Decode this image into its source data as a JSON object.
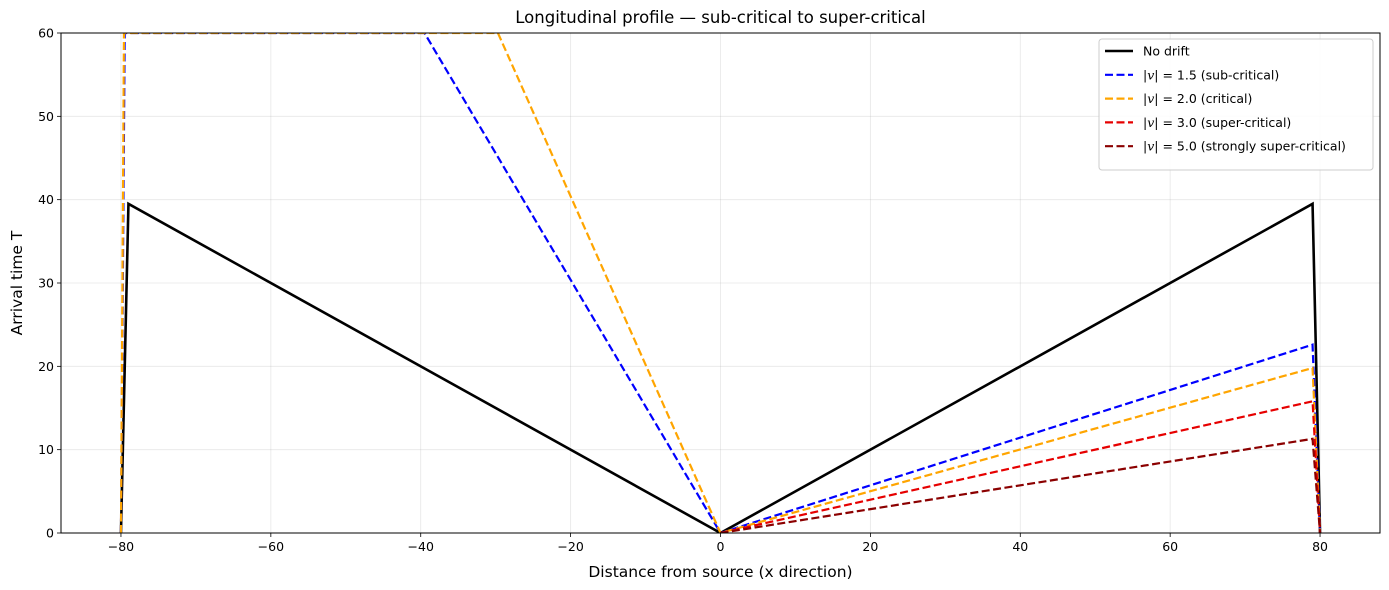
{
  "chart_data": {
    "type": "line",
    "title": "Longitudinal profile — sub-critical to super-critical",
    "xlabel": "Distance from source (x direction)",
    "ylabel": "Arrival time T",
    "xlim": [
      -88,
      88
    ],
    "ylim": [
      0,
      60
    ],
    "xticks": [
      -80,
      -60,
      -40,
      -20,
      0,
      20,
      40,
      60,
      80
    ],
    "xtick_labels": [
      "−80",
      "−60",
      "−40",
      "−20",
      "0",
      "20",
      "40",
      "60",
      "80"
    ],
    "yticks": [
      0,
      10,
      20,
      30,
      40,
      50,
      60
    ],
    "ytick_labels": [
      "0",
      "10",
      "20",
      "30",
      "40",
      "50",
      "60"
    ],
    "grid": true,
    "legend_position": "top-right",
    "series": [
      {
        "name": "No drift",
        "color": "#000000",
        "style": "solid",
        "x": [
          -80,
          -79,
          0,
          79,
          80
        ],
        "y": [
          0,
          39.5,
          0,
          39.5,
          0
        ]
      },
      {
        "name": "|v| = 1.5 (sub-critical)",
        "legend_var": "v",
        "legend_value": "= 1.5",
        "legend_desc": "(sub-critical)",
        "color": "#0000ff",
        "style": "dashed",
        "x": [
          -80,
          -79.5,
          -39.5,
          0,
          79,
          80
        ],
        "y": [
          0,
          60,
          60,
          0,
          22.6,
          0
        ]
      },
      {
        "name": "|v| = 2.0 (critical)",
        "legend_var": "v",
        "legend_value": "= 2.0",
        "legend_desc": "(critical)",
        "color": "#ffa500",
        "style": "dashed",
        "x": [
          -80,
          -79.6,
          -29.7,
          0,
          79,
          80
        ],
        "y": [
          0,
          60,
          60,
          0,
          19.8,
          0
        ]
      },
      {
        "name": "|v| = 3.0 (super-critical)",
        "legend_var": "v",
        "legend_value": "= 3.0",
        "legend_desc": "(super-critical)",
        "color": "#e60000",
        "style": "dashed",
        "x": [
          0,
          79,
          80
        ],
        "y": [
          0,
          15.8,
          0
        ]
      },
      {
        "name": "|v| = 5.0 (strongly super-critical)",
        "legend_var": "v",
        "legend_value": "= 5.0",
        "legend_desc": "(strongly super-critical)",
        "color": "#8b0000",
        "style": "dashed",
        "x": [
          0,
          79,
          80
        ],
        "y": [
          0,
          11.3,
          0
        ]
      }
    ]
  }
}
